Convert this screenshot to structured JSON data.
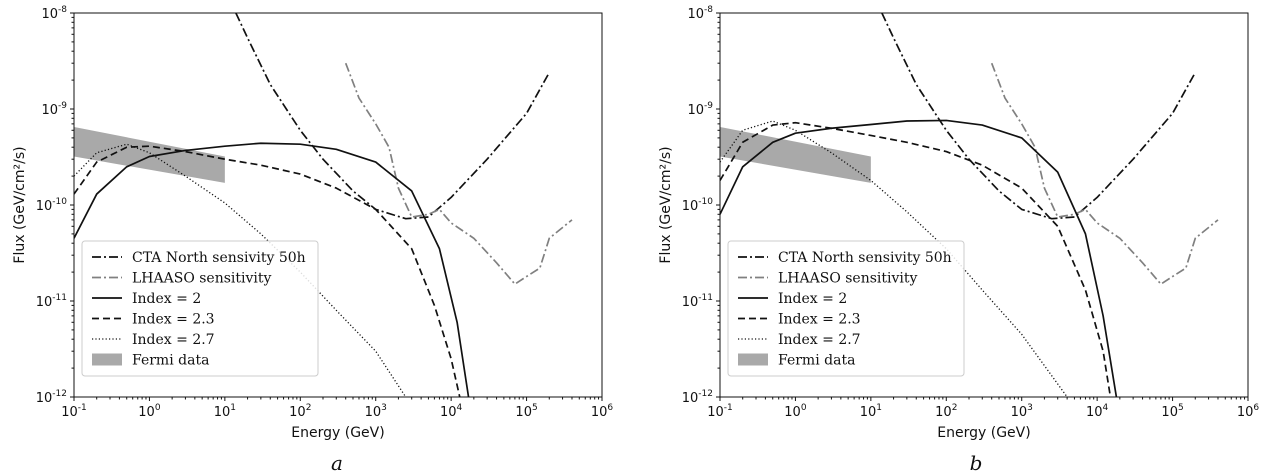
{
  "chart_data": [
    {
      "type": "line",
      "panel_label": "a",
      "xlabel": "Energy (GeV)",
      "ylabel": "Flux (GeV/cm²/s)",
      "xscale": "log",
      "yscale": "log",
      "xlim": [
        0.1,
        1000000
      ],
      "ylim": [
        1e-12,
        1e-08
      ],
      "x_ticks": [
        0.1,
        1,
        10,
        100,
        1000,
        10000,
        100000,
        1000000
      ],
      "x_tick_labels": [
        "10^-1",
        "10^0",
        "10^1",
        "10^2",
        "10^3",
        "10^4",
        "10^5",
        "10^6"
      ],
      "y_ticks": [
        1e-12,
        1e-11,
        1e-10,
        1e-09,
        1e-08
      ],
      "y_tick_labels": [
        "10^-12",
        "10^-11",
        "10^-10",
        "10^-9",
        "10^-8"
      ],
      "grid": false,
      "legend_position": "bottom-left",
      "series": [
        {
          "name": "CTA North sensivity 50h",
          "style": "dashdot",
          "color": "#111111",
          "points": [
            [
              14,
              1e-08
            ],
            [
              20,
              5.5e-09
            ],
            [
              40,
              1.8e-09
            ],
            [
              100,
              6e-10
            ],
            [
              200,
              3e-10
            ],
            [
              500,
              1.4e-10
            ],
            [
              1000,
              9e-11
            ],
            [
              2500,
              7.2e-11
            ],
            [
              5000,
              7.5e-11
            ],
            [
              10000,
              1.2e-10
            ],
            [
              30000,
              3e-10
            ],
            [
              100000,
              9e-10
            ],
            [
              200000,
              2.4e-09
            ]
          ]
        },
        {
          "name": "LHAASO sensitivity",
          "style": "dashdot",
          "color": "#808080",
          "points": [
            [
              400,
              3e-09
            ],
            [
              600,
              1.3e-09
            ],
            [
              1000,
              7e-10
            ],
            [
              1500,
              4e-10
            ],
            [
              2000,
              1.5e-10
            ],
            [
              3000,
              7.5e-11
            ],
            [
              5000,
              8e-11
            ],
            [
              7000,
              9e-11
            ],
            [
              10000,
              6.5e-11
            ],
            [
              20000,
              4.5e-11
            ],
            [
              40000,
              2.5e-11
            ],
            [
              70000,
              1.5e-11
            ],
            [
              100000,
              1.8e-11
            ],
            [
              150000,
              2.2e-11
            ],
            [
              200000,
              4.5e-11
            ],
            [
              400000,
              7e-11
            ]
          ]
        },
        {
          "name": "Index = 2",
          "style": "solid",
          "color": "#111111",
          "points": [
            [
              0.1,
              4.5e-11
            ],
            [
              0.2,
              1.3e-10
            ],
            [
              0.5,
              2.5e-10
            ],
            [
              1,
              3.2e-10
            ],
            [
              3,
              3.7e-10
            ],
            [
              10,
              4.1e-10
            ],
            [
              30,
              4.4e-10
            ],
            [
              100,
              4.3e-10
            ],
            [
              300,
              3.8e-10
            ],
            [
              1000,
              2.8e-10
            ],
            [
              3000,
              1.4e-10
            ],
            [
              7000,
              3.5e-11
            ],
            [
              12000,
              6e-12
            ],
            [
              17000,
              1e-12
            ]
          ]
        },
        {
          "name": "Index = 2.3",
          "style": "dashed",
          "color": "#111111",
          "points": [
            [
              0.1,
              1.3e-10
            ],
            [
              0.2,
              2.8e-10
            ],
            [
              0.5,
              4e-10
            ],
            [
              1,
              4.1e-10
            ],
            [
              3,
              3.6e-10
            ],
            [
              10,
              3e-10
            ],
            [
              30,
              2.6e-10
            ],
            [
              100,
              2.1e-10
            ],
            [
              300,
              1.5e-10
            ],
            [
              1000,
              9e-11
            ],
            [
              3000,
              3.5e-11
            ],
            [
              6000,
              9e-12
            ],
            [
              10000,
              2.5e-12
            ],
            [
              13000,
              1e-12
            ]
          ]
        },
        {
          "name": "Index = 2.7",
          "style": "dotted",
          "color": "#111111",
          "points": [
            [
              0.1,
              2e-10
            ],
            [
              0.2,
              3.5e-10
            ],
            [
              0.5,
              4.3e-10
            ],
            [
              1,
              3.5e-10
            ],
            [
              3,
              2e-10
            ],
            [
              10,
              1.05e-10
            ],
            [
              30,
              5e-11
            ],
            [
              100,
              2e-11
            ],
            [
              300,
              8e-12
            ],
            [
              1000,
              3e-12
            ],
            [
              2500,
              1e-12
            ]
          ]
        }
      ],
      "fermi_band": {
        "name": "Fermi data",
        "color": "#a9a9a9",
        "x": [
          0.1,
          10
        ],
        "upper": [
          6.5e-10,
          3.2e-10
        ],
        "lower": [
          3.2e-10,
          1.7e-10
        ]
      }
    },
    {
      "type": "line",
      "panel_label": "b",
      "xlabel": "Energy (GeV)",
      "ylabel": "Flux (GeV/cm²/s)",
      "xscale": "log",
      "yscale": "log",
      "xlim": [
        0.1,
        1000000
      ],
      "ylim": [
        1e-12,
        1e-08
      ],
      "x_ticks": [
        0.1,
        1,
        10,
        100,
        1000,
        10000,
        100000,
        1000000
      ],
      "x_tick_labels": [
        "10^-1",
        "10^0",
        "10^1",
        "10^2",
        "10^3",
        "10^4",
        "10^5",
        "10^6"
      ],
      "y_ticks": [
        1e-12,
        1e-11,
        1e-10,
        1e-09,
        1e-08
      ],
      "y_tick_labels": [
        "10^-12",
        "10^-11",
        "10^-10",
        "10^-9",
        "10^-8"
      ],
      "grid": false,
      "legend_position": "bottom-left",
      "series": [
        {
          "name": "CTA North sensivity 50h",
          "style": "dashdot",
          "color": "#111111",
          "points": [
            [
              14,
              1e-08
            ],
            [
              20,
              5.5e-09
            ],
            [
              40,
              1.8e-09
            ],
            [
              100,
              6e-10
            ],
            [
              200,
              3e-10
            ],
            [
              500,
              1.4e-10
            ],
            [
              1000,
              9e-11
            ],
            [
              2500,
              7.2e-11
            ],
            [
              5000,
              7.5e-11
            ],
            [
              10000,
              1.2e-10
            ],
            [
              30000,
              3e-10
            ],
            [
              100000,
              9e-10
            ],
            [
              200000,
              2.4e-09
            ]
          ]
        },
        {
          "name": "LHAASO sensitivity",
          "style": "dashdot",
          "color": "#808080",
          "points": [
            [
              400,
              3e-09
            ],
            [
              600,
              1.3e-09
            ],
            [
              1000,
              7e-10
            ],
            [
              1500,
              4e-10
            ],
            [
              2000,
              1.5e-10
            ],
            [
              3000,
              7.5e-11
            ],
            [
              5000,
              8e-11
            ],
            [
              7000,
              9e-11
            ],
            [
              10000,
              6.5e-11
            ],
            [
              20000,
              4.5e-11
            ],
            [
              40000,
              2.5e-11
            ],
            [
              70000,
              1.5e-11
            ],
            [
              100000,
              1.8e-11
            ],
            [
              150000,
              2.2e-11
            ],
            [
              200000,
              4.5e-11
            ],
            [
              400000,
              7e-11
            ]
          ]
        },
        {
          "name": "Index = 2",
          "style": "solid",
          "color": "#111111",
          "points": [
            [
              0.1,
              8e-11
            ],
            [
              0.2,
              2.5e-10
            ],
            [
              0.5,
              4.5e-10
            ],
            [
              1,
              5.6e-10
            ],
            [
              3,
              6.3e-10
            ],
            [
              10,
              6.9e-10
            ],
            [
              30,
              7.5e-10
            ],
            [
              100,
              7.6e-10
            ],
            [
              300,
              6.8e-10
            ],
            [
              1000,
              5e-10
            ],
            [
              3000,
              2.2e-10
            ],
            [
              7000,
              5e-11
            ],
            [
              12000,
              7e-12
            ],
            [
              18000,
              1e-12
            ]
          ]
        },
        {
          "name": "Index = 2.3",
          "style": "dashed",
          "color": "#111111",
          "points": [
            [
              0.1,
              1.8e-10
            ],
            [
              0.2,
              4.5e-10
            ],
            [
              0.5,
              6.8e-10
            ],
            [
              1,
              7.2e-10
            ],
            [
              3,
              6.3e-10
            ],
            [
              10,
              5.3e-10
            ],
            [
              30,
              4.5e-10
            ],
            [
              100,
              3.6e-10
            ],
            [
              300,
              2.6e-10
            ],
            [
              1000,
              1.5e-10
            ],
            [
              3000,
              6e-11
            ],
            [
              7000,
              1.3e-11
            ],
            [
              12000,
              3e-12
            ],
            [
              15000,
              1e-12
            ]
          ]
        },
        {
          "name": "Index = 2.7",
          "style": "dotted",
          "color": "#111111",
          "points": [
            [
              0.1,
              2.8e-10
            ],
            [
              0.2,
              6e-10
            ],
            [
              0.5,
              7.5e-10
            ],
            [
              1,
              6e-10
            ],
            [
              3,
              3.5e-10
            ],
            [
              10,
              1.8e-10
            ],
            [
              30,
              8.5e-11
            ],
            [
              100,
              3.5e-11
            ],
            [
              300,
              1.3e-11
            ],
            [
              1000,
              4.5e-12
            ],
            [
              4000,
              1e-12
            ]
          ]
        }
      ],
      "fermi_band": {
        "name": "Fermi data",
        "color": "#a9a9a9",
        "x": [
          0.1,
          10
        ],
        "upper": [
          6.5e-10,
          3.2e-10
        ],
        "lower": [
          3.2e-10,
          1.7e-10
        ]
      }
    }
  ]
}
